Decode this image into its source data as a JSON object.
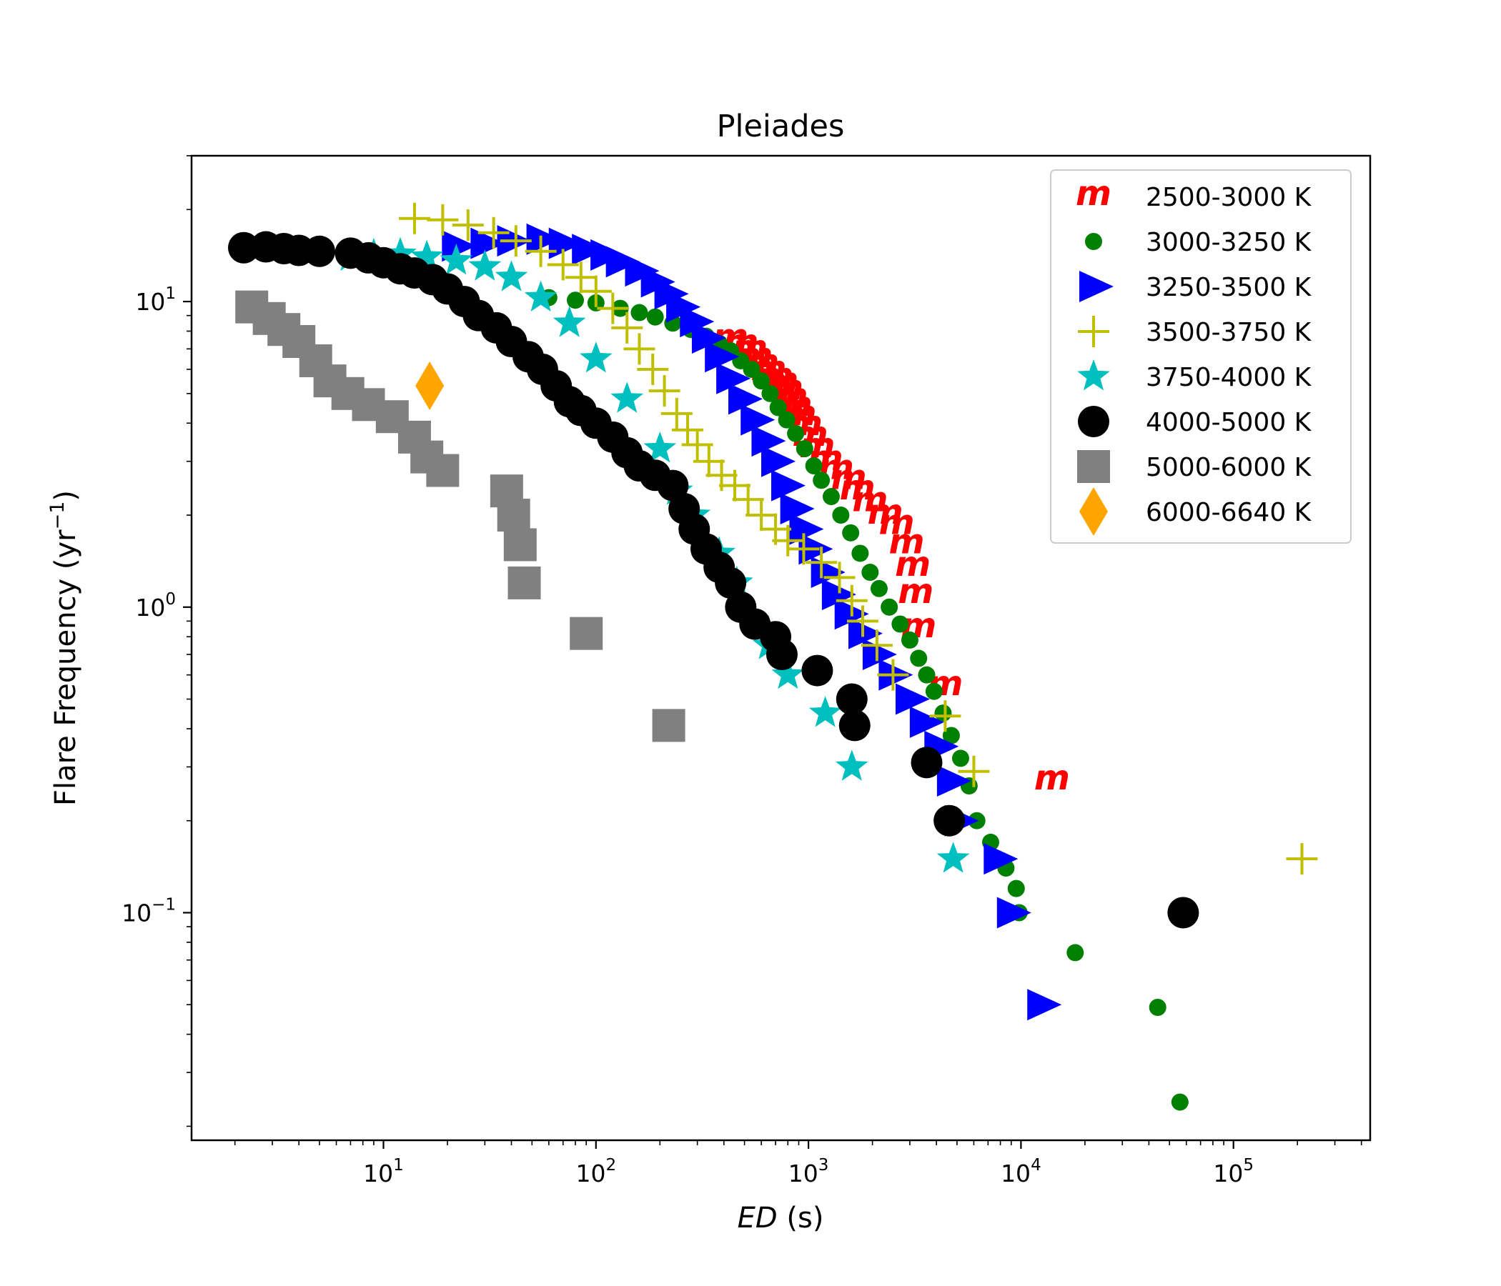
{
  "chart_data": {
    "type": "scatter",
    "title": "Pleiades",
    "xlabel_italic": "ED",
    "xlabel_rest": " (s)",
    "ylabel_main": "Flare Frequency (yr",
    "ylabel_exp": "−1",
    "ylabel_close": ")",
    "xscale": "log",
    "yscale": "log",
    "xlim": [
      1.25,
      440000
    ],
    "ylim": [
      0.018,
      30
    ],
    "xticks": [
      {
        "value": 10,
        "base": "10",
        "exp": "1"
      },
      {
        "value": 100,
        "base": "10",
        "exp": "2"
      },
      {
        "value": 1000,
        "base": "10",
        "exp": "3"
      },
      {
        "value": 10000,
        "base": "10",
        "exp": "4"
      },
      {
        "value": 100000,
        "base": "10",
        "exp": "5"
      }
    ],
    "yticks": [
      {
        "value": 0.1,
        "base": "10",
        "exp": "−1"
      },
      {
        "value": 1,
        "base": "10",
        "exp": "0"
      },
      {
        "value": 10,
        "base": "10",
        "exp": "1"
      }
    ],
    "grid": false,
    "legend_position": "top-right",
    "series": [
      {
        "name": "2500-3000 K",
        "marker": "m",
        "color": "#ff0000",
        "points": [
          [
            430,
            7.5
          ],
          [
            480,
            7.2
          ],
          [
            530,
            6.9
          ],
          [
            560,
            6.5
          ],
          [
            600,
            6.2
          ],
          [
            650,
            5.9
          ],
          [
            700,
            5.6
          ],
          [
            740,
            5.4
          ],
          [
            780,
            5.1
          ],
          [
            820,
            4.8
          ],
          [
            860,
            4.5
          ],
          [
            900,
            4.2
          ],
          [
            960,
            3.9
          ],
          [
            1020,
            3.6
          ],
          [
            1100,
            3.3
          ],
          [
            1200,
            3.0
          ],
          [
            1350,
            2.8
          ],
          [
            1550,
            2.6
          ],
          [
            1700,
            2.4
          ],
          [
            1950,
            2.2
          ],
          [
            2300,
            2.0
          ],
          [
            2600,
            1.85
          ],
          [
            2900,
            1.6
          ],
          [
            3100,
            1.35
          ],
          [
            3200,
            1.1
          ],
          [
            3300,
            0.85
          ],
          [
            4400,
            0.55
          ],
          [
            14000,
            0.27
          ]
        ]
      },
      {
        "name": "3000-3250 K",
        "marker": "circle",
        "color": "#008000",
        "points": [
          [
            60,
            10.3
          ],
          [
            80,
            10.1
          ],
          [
            100,
            9.9
          ],
          [
            130,
            9.5
          ],
          [
            160,
            9.2
          ],
          [
            190,
            8.9
          ],
          [
            230,
            8.5
          ],
          [
            280,
            8.1
          ],
          [
            330,
            7.7
          ],
          [
            380,
            7.3
          ],
          [
            430,
            6.9
          ],
          [
            480,
            6.4
          ],
          [
            540,
            6.0
          ],
          [
            600,
            5.5
          ],
          [
            660,
            5.0
          ],
          [
            720,
            4.5
          ],
          [
            790,
            4.1
          ],
          [
            870,
            3.7
          ],
          [
            960,
            3.3
          ],
          [
            1060,
            2.9
          ],
          [
            1150,
            2.6
          ],
          [
            1280,
            2.3
          ],
          [
            1420,
            2.0
          ],
          [
            1580,
            1.75
          ],
          [
            1750,
            1.5
          ],
          [
            1950,
            1.3
          ],
          [
            2150,
            1.15
          ],
          [
            2400,
            1.0
          ],
          [
            2700,
            0.88
          ],
          [
            3000,
            0.78
          ],
          [
            3300,
            0.68
          ],
          [
            3600,
            0.6
          ],
          [
            3900,
            0.53
          ],
          [
            4300,
            0.45
          ],
          [
            4700,
            0.38
          ],
          [
            5200,
            0.32
          ],
          [
            5700,
            0.26
          ],
          [
            6200,
            0.2
          ],
          [
            7200,
            0.17
          ],
          [
            8500,
            0.14
          ],
          [
            9500,
            0.12
          ],
          [
            9800,
            0.1
          ],
          [
            18000,
            0.074
          ],
          [
            44000,
            0.049
          ],
          [
            56000,
            0.024
          ]
        ]
      },
      {
        "name": "3250-3500 K",
        "marker": "triangle-right",
        "color": "#0000ff",
        "points": [
          [
            22,
            15.2
          ],
          [
            30,
            15.5
          ],
          [
            40,
            15.8
          ],
          [
            55,
            16.0
          ],
          [
            70,
            15.5
          ],
          [
            90,
            14.8
          ],
          [
            110,
            14.2
          ],
          [
            130,
            13.5
          ],
          [
            160,
            12.6
          ],
          [
            190,
            11.6
          ],
          [
            220,
            10.6
          ],
          [
            250,
            9.6
          ],
          [
            290,
            8.6
          ],
          [
            330,
            7.6
          ],
          [
            380,
            6.6
          ],
          [
            430,
            5.6
          ],
          [
            490,
            4.8
          ],
          [
            560,
            4.1
          ],
          [
            630,
            3.5
          ],
          [
            700,
            3.0
          ],
          [
            780,
            2.5
          ],
          [
            860,
            2.1
          ],
          [
            950,
            1.8
          ],
          [
            1050,
            1.55
          ],
          [
            1200,
            1.3
          ],
          [
            1350,
            1.1
          ],
          [
            1550,
            0.95
          ],
          [
            1800,
            0.82
          ],
          [
            2100,
            0.7
          ],
          [
            2500,
            0.6
          ],
          [
            3000,
            0.5
          ],
          [
            3500,
            0.42
          ],
          [
            4100,
            0.35
          ],
          [
            4700,
            0.27
          ],
          [
            5100,
            0.2
          ],
          [
            7800,
            0.15
          ],
          [
            9000,
            0.1
          ],
          [
            12500,
            0.05
          ]
        ]
      },
      {
        "name": "3500-3750 K",
        "marker": "plus",
        "color": "#bfbf00",
        "points": [
          [
            14,
            18.7
          ],
          [
            19,
            18.5
          ],
          [
            25,
            17.8
          ],
          [
            33,
            16.8
          ],
          [
            42,
            15.8
          ],
          [
            55,
            14.6
          ],
          [
            70,
            13.2
          ],
          [
            85,
            12.0
          ],
          [
            100,
            10.8
          ],
          [
            120,
            9.5
          ],
          [
            140,
            8.2
          ],
          [
            160,
            7.0
          ],
          [
            185,
            6.0
          ],
          [
            210,
            5.1
          ],
          [
            240,
            4.3
          ],
          [
            270,
            3.8
          ],
          [
            300,
            3.4
          ],
          [
            340,
            3.0
          ],
          [
            390,
            2.7
          ],
          [
            450,
            2.5
          ],
          [
            520,
            2.25
          ],
          [
            600,
            2.0
          ],
          [
            700,
            1.8
          ],
          [
            800,
            1.65
          ],
          [
            950,
            1.55
          ],
          [
            1150,
            1.4
          ],
          [
            1400,
            1.25
          ],
          [
            1600,
            1.05
          ],
          [
            1800,
            0.9
          ],
          [
            2100,
            0.75
          ],
          [
            2500,
            0.6
          ],
          [
            4400,
            0.44
          ],
          [
            6000,
            0.29
          ],
          [
            210000,
            0.15
          ]
        ]
      },
      {
        "name": "3750-4000 K",
        "marker": "star",
        "color": "#00bfbf",
        "points": [
          [
            7,
            14.0
          ],
          [
            9,
            14.2
          ],
          [
            12,
            14.3
          ],
          [
            16,
            14.0
          ],
          [
            22,
            13.6
          ],
          [
            30,
            13.0
          ],
          [
            40,
            12.0
          ],
          [
            55,
            10.3
          ],
          [
            75,
            8.5
          ],
          [
            100,
            6.5
          ],
          [
            140,
            4.8
          ],
          [
            200,
            3.3
          ],
          [
            240,
            2.4
          ],
          [
            290,
            2.0
          ],
          [
            380,
            1.5
          ],
          [
            460,
            1.2
          ],
          [
            550,
            0.9
          ],
          [
            650,
            0.75
          ],
          [
            800,
            0.6
          ],
          [
            1200,
            0.45
          ],
          [
            1600,
            0.3
          ],
          [
            4800,
            0.15
          ]
        ]
      },
      {
        "name": "4000-5000 K",
        "marker": "big-circle",
        "color": "#000000",
        "points": [
          [
            2.2,
            15.0
          ],
          [
            2.8,
            15.1
          ],
          [
            3.4,
            14.9
          ],
          [
            4.0,
            14.7
          ],
          [
            5.0,
            14.6
          ],
          [
            7.0,
            14.4
          ],
          [
            8.5,
            13.9
          ],
          [
            10,
            13.4
          ],
          [
            12,
            12.8
          ],
          [
            14,
            12.4
          ],
          [
            17,
            11.8
          ],
          [
            20,
            11.0
          ],
          [
            24,
            10.0
          ],
          [
            28,
            9.0
          ],
          [
            34,
            8.2
          ],
          [
            40,
            7.4
          ],
          [
            48,
            6.6
          ],
          [
            56,
            6.0
          ],
          [
            65,
            5.3
          ],
          [
            75,
            4.7
          ],
          [
            85,
            4.4
          ],
          [
            100,
            4.0
          ],
          [
            120,
            3.6
          ],
          [
            140,
            3.2
          ],
          [
            160,
            2.9
          ],
          [
            190,
            2.7
          ],
          [
            230,
            2.5
          ],
          [
            260,
            2.1
          ],
          [
            290,
            1.8
          ],
          [
            330,
            1.55
          ],
          [
            380,
            1.35
          ],
          [
            430,
            1.2
          ],
          [
            480,
            1.0
          ],
          [
            560,
            0.88
          ],
          [
            700,
            0.8
          ],
          [
            750,
            0.7
          ],
          [
            1100,
            0.62
          ],
          [
            1600,
            0.5
          ],
          [
            1650,
            0.41
          ],
          [
            3600,
            0.31
          ],
          [
            4600,
            0.2
          ],
          [
            58000,
            0.1
          ]
        ]
      },
      {
        "name": "5000-6000 K",
        "marker": "square",
        "color": "#808080",
        "points": [
          [
            2.4,
            9.6
          ],
          [
            2.9,
            8.8
          ],
          [
            3.4,
            8.1
          ],
          [
            4.0,
            7.4
          ],
          [
            4.8,
            6.4
          ],
          [
            5.6,
            5.5
          ],
          [
            6.8,
            5.0
          ],
          [
            8.5,
            4.6
          ],
          [
            11,
            4.2
          ],
          [
            14,
            3.6
          ],
          [
            16,
            3.1
          ],
          [
            19,
            2.8
          ],
          [
            38,
            2.4
          ],
          [
            41,
            2.0
          ],
          [
            44,
            1.6
          ],
          [
            46,
            1.2
          ],
          [
            90,
            0.82
          ],
          [
            220,
            0.41
          ]
        ]
      },
      {
        "name": "6000-6640 K",
        "marker": "diamond",
        "color": "#ffa500",
        "points": [
          [
            16.5,
            5.3
          ]
        ]
      }
    ]
  }
}
